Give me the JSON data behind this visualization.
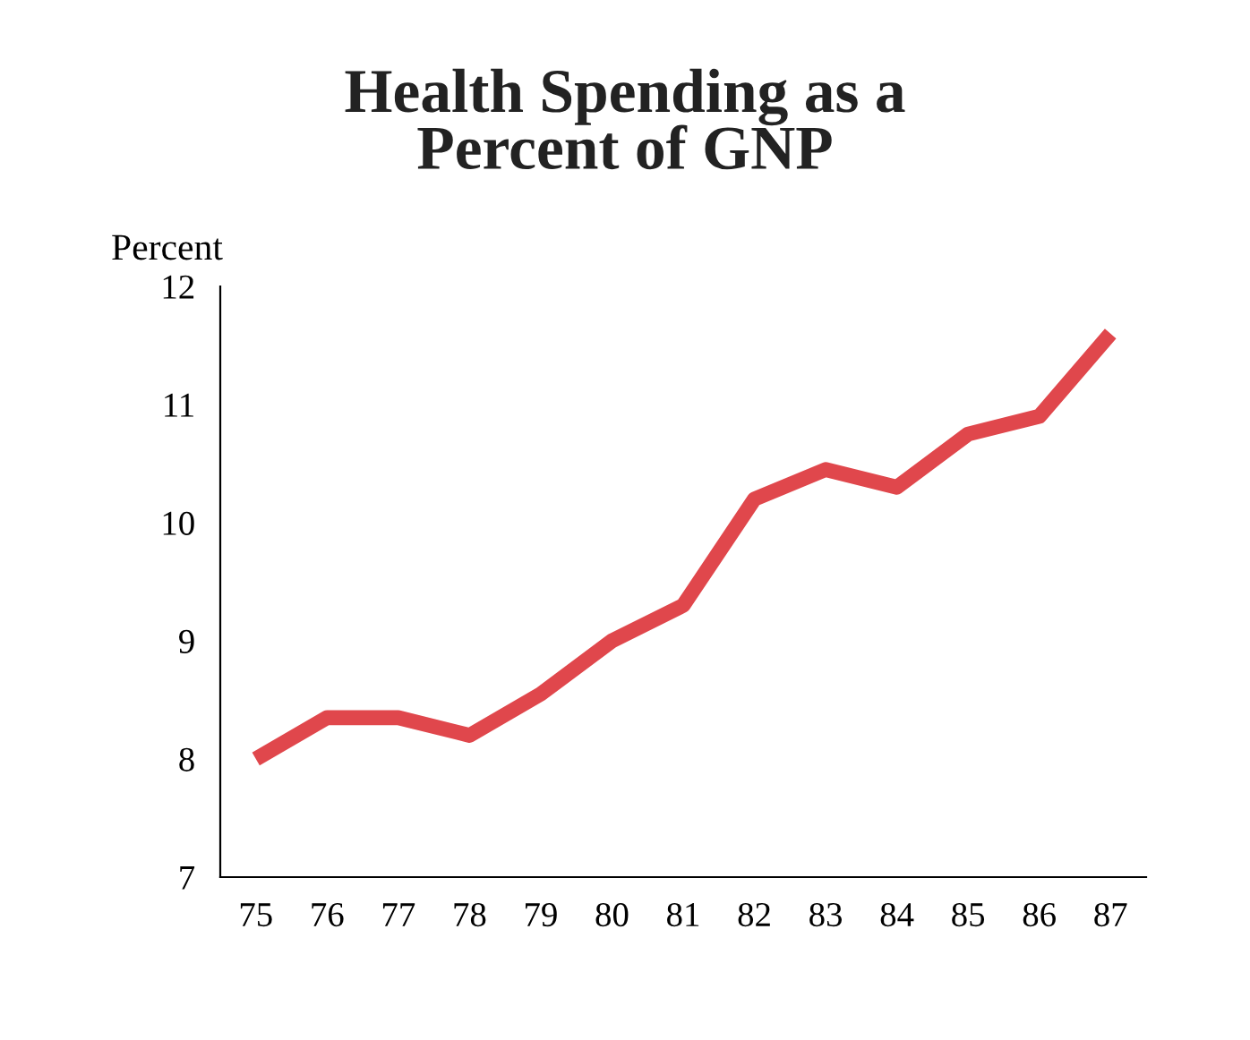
{
  "chart_data": {
    "type": "line",
    "title": "Health Spending as a\nPercent of GNP",
    "ylabel": "Percent",
    "categories": [
      "75",
      "76",
      "77",
      "78",
      "79",
      "80",
      "81",
      "82",
      "83",
      "84",
      "85",
      "86",
      "87"
    ],
    "series": [
      {
        "color": "#e0474c",
        "values": [
          8.0,
          8.35,
          8.35,
          8.2,
          8.55,
          9.0,
          9.3,
          10.2,
          10.45,
          10.3,
          10.75,
          10.9,
          11.6
        ]
      }
    ],
    "ylim": [
      7,
      12
    ],
    "yticks": [
      7,
      8,
      9,
      10,
      11,
      12
    ],
    "grid": false,
    "legend": false,
    "marker": "none",
    "line_style": "solid"
  }
}
